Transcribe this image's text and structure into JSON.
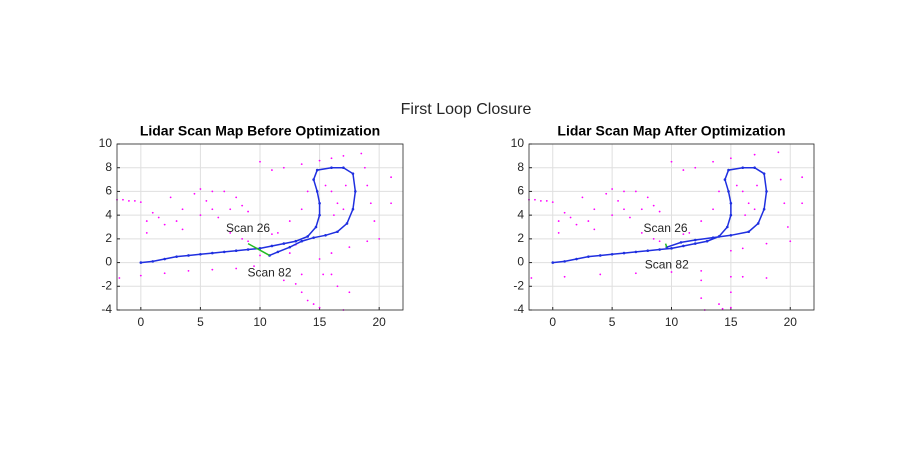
{
  "figure_title": "First Loop Closure",
  "chart_data": [
    {
      "type": "scatter",
      "title": "Lidar Scan Map Before Optimization",
      "xlim": [
        -2,
        22
      ],
      "ylim": [
        -4,
        10
      ],
      "xticks": [
        0,
        5,
        10,
        15,
        20
      ],
      "yticks": [
        -4,
        -2,
        0,
        2,
        4,
        6,
        8,
        10
      ],
      "grid": true,
      "series": [
        {
          "color": "#ff00ff",
          "mode": "markers",
          "x": [
            -2,
            -1.5,
            -1,
            -0.5,
            0,
            0.5,
            0.5,
            1,
            1.5,
            2,
            3,
            3.5,
            3.5,
            2.5,
            4.5,
            5,
            5.5,
            6,
            6.5,
            5,
            6,
            7,
            8,
            7.5,
            8.5,
            9,
            8.5,
            9,
            7.5,
            11,
            11.5,
            12.5,
            13,
            -1.8,
            0,
            2,
            4,
            6,
            8,
            9.5,
            10,
            12,
            13,
            13.5,
            14,
            14.5,
            15,
            13.5,
            12.5,
            16,
            16.5,
            17.5,
            17,
            13.5,
            15,
            16,
            17,
            18.5,
            18.8,
            19,
            19.3,
            19.6,
            20,
            19,
            17.5,
            16,
            15,
            15.3,
            16,
            16.5,
            16.2,
            17.2,
            17,
            15.5,
            14,
            13.5,
            21,
            21,
            12,
            11,
            10
          ],
          "y": [
            5.3,
            5.3,
            5.2,
            5.2,
            5.1,
            3.5,
            2.5,
            4.2,
            3.8,
            3.2,
            3.5,
            2.8,
            4.5,
            5.5,
            5.8,
            6.2,
            5.2,
            4.5,
            3.8,
            4,
            6,
            6,
            5.5,
            4.5,
            4.8,
            4.3,
            2,
            1.8,
            2.5,
            2.4,
            2.5,
            3.5,
            1.5,
            -1.3,
            -1.1,
            -0.9,
            -0.7,
            -0.6,
            -0.5,
            -0.3,
            0.6,
            -1.5,
            -1.8,
            -2.5,
            -3.2,
            -3.5,
            -3.8,
            -1,
            0.8,
            -1,
            -2,
            -2.5,
            -4,
            8.3,
            8.6,
            8.8,
            9,
            9.2,
            8,
            6.5,
            5,
            3.5,
            2,
            1.8,
            1.3,
            0.8,
            0.3,
            -1,
            6,
            5,
            4,
            6.5,
            4.5,
            6.5,
            6,
            4.5,
            7.2,
            5,
            8,
            7.8,
            8.5
          ]
        },
        {
          "color": "#1f2fe0",
          "mode": "lines+markers",
          "x": [
            0,
            1,
            2,
            3,
            4,
            5,
            6,
            7,
            8,
            9,
            10,
            11,
            12,
            13,
            14,
            14.7,
            15,
            15,
            14.8,
            14.5,
            14.8,
            16,
            17,
            17.8,
            18,
            17.8,
            17.3,
            16.5,
            15.5,
            14.5,
            13.5,
            12.5,
            11.5,
            10.8
          ],
          "y": [
            0,
            0.1,
            0.3,
            0.5,
            0.6,
            0.7,
            0.8,
            0.9,
            1,
            1.1,
            1.2,
            1.4,
            1.6,
            1.8,
            2.2,
            3,
            4,
            5,
            6,
            7,
            7.8,
            8,
            8,
            7.5,
            6,
            4.5,
            3.3,
            2.6,
            2.3,
            2.1,
            1.8,
            1.3,
            0.9,
            0.6
          ]
        },
        {
          "color": "#22bb22",
          "mode": "lines",
          "x": [
            9,
            10.8
          ],
          "y": [
            1.6,
            0.6
          ],
          "point_labels": [
            "Scan 26",
            "Scan 82"
          ]
        }
      ]
    },
    {
      "type": "scatter",
      "title": "Lidar Scan Map After Optimization",
      "xlim": [
        -2,
        22
      ],
      "ylim": [
        -4,
        10
      ],
      "xticks": [
        0,
        5,
        10,
        15,
        20
      ],
      "yticks": [
        -4,
        -2,
        0,
        2,
        4,
        6,
        8,
        10
      ],
      "grid": true,
      "series": [
        {
          "color": "#ff00ff",
          "mode": "markers",
          "x": [
            -2,
            -1.5,
            -1,
            -0.5,
            0,
            0.5,
            0.5,
            1,
            1.5,
            2,
            3,
            3.5,
            3.5,
            2.5,
            4.5,
            5,
            5.5,
            6,
            6.5,
            5,
            6,
            7,
            8,
            7.5,
            8.5,
            9,
            8.5,
            9,
            7.5,
            11,
            11.5,
            12.5,
            -1.8,
            1,
            4,
            7,
            10,
            12.5,
            12.5,
            12.5,
            12.8,
            15,
            15,
            15,
            16,
            18,
            13.5,
            15,
            17,
            19,
            19.2,
            19.5,
            19.8,
            20,
            18,
            16,
            15,
            16,
            16.5,
            16.2,
            17.2,
            17,
            15.5,
            14,
            13.5,
            21,
            21,
            12,
            11,
            10,
            14,
            14.3
          ],
          "y": [
            5.3,
            5.3,
            5.2,
            5.2,
            5.1,
            3.5,
            2.5,
            4.2,
            3.8,
            3.2,
            3.5,
            2.8,
            4.5,
            5.5,
            5.8,
            6.2,
            5.2,
            4.5,
            3.8,
            4,
            6,
            6,
            5.5,
            4.5,
            4.8,
            4.3,
            2,
            1.8,
            2.5,
            2.4,
            2.5,
            3.5,
            -1.3,
            -1.2,
            -1,
            -0.9,
            -0.8,
            -0.7,
            -1.5,
            -3,
            -4,
            -1.2,
            -2.5,
            -3.8,
            -1.2,
            -1.3,
            8.5,
            8.8,
            9.1,
            9.3,
            7,
            5,
            3,
            1.8,
            1.6,
            1.2,
            1,
            6,
            5,
            4,
            6.5,
            4.5,
            6.5,
            6,
            4.5,
            7.2,
            5,
            8,
            7.8,
            8.5,
            -3.5,
            -3.9
          ]
        },
        {
          "color": "#1f2fe0",
          "mode": "lines+markers",
          "x": [
            0,
            1,
            2,
            3,
            4,
            5,
            6,
            7,
            8,
            9,
            10,
            11,
            12,
            13,
            14,
            14.7,
            15,
            15,
            14.8,
            14.5,
            14.8,
            16,
            17,
            17.8,
            18,
            17.8,
            17.3,
            16.5,
            15,
            13.5,
            12,
            10.8,
            9.6
          ],
          "y": [
            0,
            0.1,
            0.3,
            0.5,
            0.6,
            0.7,
            0.8,
            0.9,
            1,
            1.1,
            1.2,
            1.4,
            1.6,
            1.8,
            2.2,
            3,
            4,
            5,
            6,
            7,
            7.8,
            8,
            8,
            7.5,
            6,
            4.5,
            3.3,
            2.6,
            2.3,
            2.1,
            1.9,
            1.7,
            1.3
          ]
        },
        {
          "color": "#22bb22",
          "mode": "lines",
          "x": [
            9.5,
            9.6
          ],
          "y": [
            1.6,
            1.3
          ],
          "point_labels": [
            "Scan 26",
            "Scan 82"
          ]
        }
      ]
    }
  ]
}
